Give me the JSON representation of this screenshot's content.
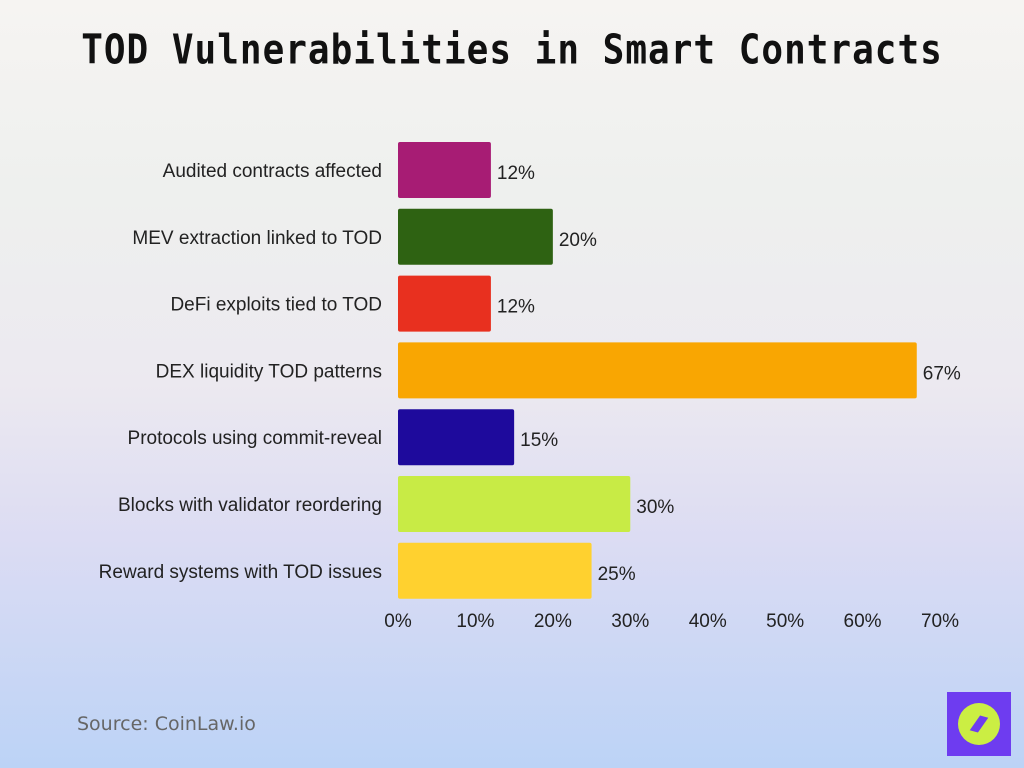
{
  "chart_data": {
    "type": "bar",
    "orientation": "horizontal",
    "title": "TOD Vulnerabilities in Smart Contracts",
    "categories": [
      "Audited contracts affected",
      "MEV extraction linked to TOD",
      "DeFi exploits tied to TOD",
      "DEX liquidity TOD patterns",
      "Protocols using commit-reveal",
      "Blocks with validator reordering",
      "Reward systems with TOD issues"
    ],
    "values": [
      12,
      20,
      12,
      67,
      15,
      30,
      25
    ],
    "data_labels": [
      "12%",
      "20%",
      "12%",
      "67%",
      "15%",
      "30%",
      "25%"
    ],
    "colors": [
      "#a71c74",
      "#2e6212",
      "#e8301f",
      "#f9a602",
      "#1e0a9c",
      "#c8eb45",
      "#ffd12f"
    ],
    "xlim": [
      0,
      70
    ],
    "xticks": [
      "0%",
      "10%",
      "20%",
      "30%",
      "40%",
      "50%",
      "60%",
      "70%"
    ],
    "grid": false,
    "legend": "none"
  },
  "source": "Source: CoinLaw.io",
  "logo_icon": "compass-icon"
}
